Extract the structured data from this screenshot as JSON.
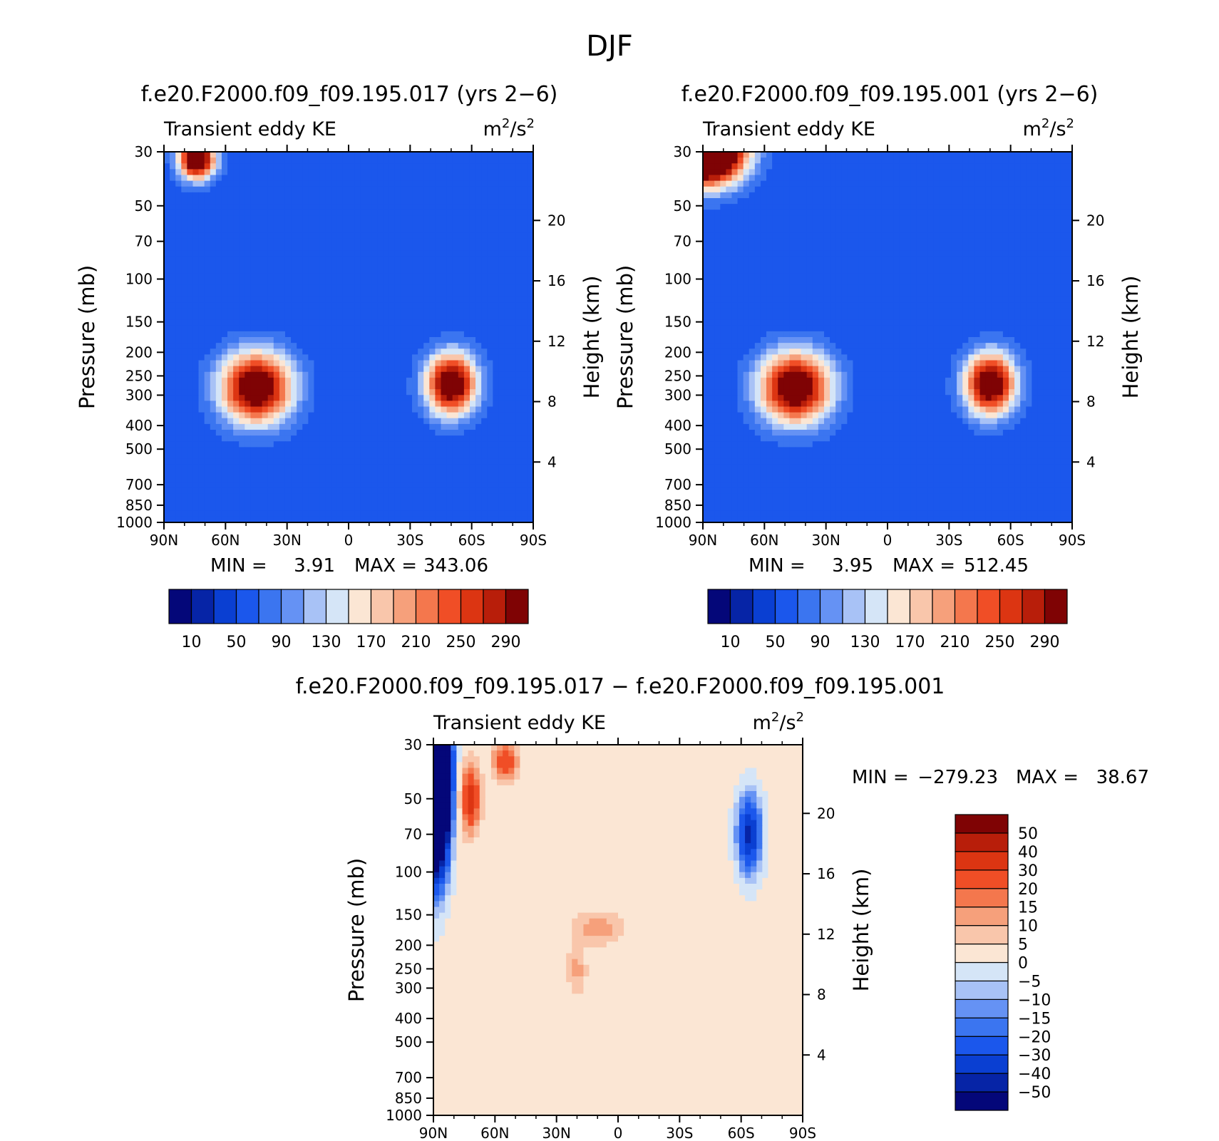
{
  "figure": {
    "title": "DJF"
  },
  "chart_data": [
    {
      "type": "heatmap",
      "title": "f.e20.F2000.f09_f09.195.017 (yrs 2−6)",
      "subtitle_left": "Transient eddy KE",
      "subtitle_right_base": "m",
      "subtitle_right_sup1": "2",
      "subtitle_right_mid": "/s",
      "subtitle_right_sup2": "2",
      "ylabel": "Pressure (mb)",
      "ylabel_right": "Height (km)",
      "x_ticks": [
        "90N",
        "60N",
        "30N",
        "0",
        "30S",
        "60S",
        "90S"
      ],
      "y_ticks": [
        "30",
        "50",
        "70",
        "100",
        "150",
        "200",
        "250",
        "300",
        "400",
        "500",
        "700",
        "850",
        "1000"
      ],
      "y_ticks_right": [
        "20",
        "16",
        "12",
        "8",
        "4"
      ],
      "stats": {
        "min_label": "MIN =",
        "min": "3.91",
        "max_label": "MAX =",
        "max": "343.06"
      },
      "blobs": [
        {
          "lat": 74,
          "p": 32,
          "amp": 330,
          "wlat": 6,
          "wlogp": 0.13
        },
        {
          "lat": 45,
          "p": 280,
          "amp": 300,
          "wlat": 12,
          "wlogp": 0.23
        },
        {
          "lat": -50,
          "p": 270,
          "amp": 300,
          "wlat": 8.5,
          "wlogp": 0.2
        }
      ],
      "base": 55
    },
    {
      "type": "heatmap",
      "title": "f.e20.F2000.f09_f09.195.001 (yrs 2−6)",
      "subtitle_left": "Transient eddy KE",
      "subtitle_right_base": "m",
      "subtitle_right_sup1": "2",
      "subtitle_right_mid": "/s",
      "subtitle_right_sup2": "2",
      "ylabel": "Pressure (mb)",
      "ylabel_right": "Height (km)",
      "x_ticks": [
        "90N",
        "60N",
        "30N",
        "0",
        "30S",
        "60S",
        "90S"
      ],
      "y_ticks": [
        "30",
        "50",
        "70",
        "100",
        "150",
        "200",
        "250",
        "300",
        "400",
        "500",
        "700",
        "850",
        "1000"
      ],
      "y_ticks_right": [
        "20",
        "16",
        "12",
        "8",
        "4"
      ],
      "stats": {
        "min_label": "MIN =",
        "min": "3.95",
        "max_label": "MAX =",
        "max": "512.45"
      },
      "blobs": [
        {
          "lat": 88,
          "p": 30,
          "amp": 510,
          "wlat": 12,
          "wlogp": 0.2
        },
        {
          "lat": 45,
          "p": 280,
          "amp": 300,
          "wlat": 12,
          "wlogp": 0.23
        },
        {
          "lat": -50,
          "p": 270,
          "amp": 300,
          "wlat": 8.5,
          "wlogp": 0.2
        }
      ],
      "base": 55
    },
    {
      "type": "heatmap",
      "title": "f.e20.F2000.f09_f09.195.017 − f.e20.F2000.f09_f09.195.001",
      "subtitle_left": "Transient eddy KE",
      "subtitle_right_base": "m",
      "subtitle_right_sup1": "2",
      "subtitle_right_mid": "/s",
      "subtitle_right_sup2": "2",
      "ylabel": "Pressure (mb)",
      "ylabel_right": "Height (km)",
      "x_ticks": [
        "90N",
        "60N",
        "30N",
        "0",
        "30S",
        "60S",
        "90S"
      ],
      "y_ticks": [
        "30",
        "50",
        "70",
        "100",
        "150",
        "200",
        "250",
        "300",
        "400",
        "500",
        "700",
        "850",
        "1000"
      ],
      "y_ticks_right": [
        "20",
        "16",
        "12",
        "8",
        "4"
      ],
      "stats": {
        "min_label": "MIN =",
        "min": "−279.23",
        "max_label": "MAX =",
        "max": "38.67"
      },
      "blobs": [
        {
          "lat": 89,
          "p": 40,
          "amp": -280,
          "wlat": 4,
          "wlogp": 0.5
        },
        {
          "lat": 72,
          "p": 50,
          "amp": 35,
          "wlat": 3,
          "wlogp": 0.2
        },
        {
          "lat": 55,
          "p": 35,
          "amp": 25,
          "wlat": 4,
          "wlogp": 0.12
        },
        {
          "lat": 10,
          "p": 170,
          "amp": 12,
          "wlat": 8,
          "wlogp": 0.1
        },
        {
          "lat": -64,
          "p": 70,
          "amp": -45,
          "wlat": 4,
          "wlogp": 0.25
        },
        {
          "lat": 20,
          "p": 250,
          "amp": 10,
          "wlat": 3,
          "wlogp": 0.15
        }
      ],
      "base": 2
    }
  ],
  "colorbars": {
    "top": {
      "colors": [
        "#040779",
        "#0624a6",
        "#0a3fd2",
        "#1b57ec",
        "#3b75f0",
        "#6592f4",
        "#a8c2f6",
        "#d5e5f7",
        "#fbe6d4",
        "#f9c6ab",
        "#f6a07b",
        "#f4774d",
        "#f04e26",
        "#dc3512",
        "#b81e0a",
        "#7f0304"
      ],
      "labels": [
        "10",
        "50",
        "90",
        "130",
        "170",
        "210",
        "250",
        "290"
      ],
      "levels": [
        10,
        30,
        50,
        70,
        90,
        110,
        130,
        150,
        170,
        190,
        210,
        230,
        250,
        270,
        290
      ]
    },
    "diff": {
      "colors": [
        "#040779",
        "#0624a6",
        "#0a3fd2",
        "#1b57ec",
        "#3b75f0",
        "#6592f4",
        "#a8c2f6",
        "#d5e5f7",
        "#fbe6d4",
        "#f9c6ab",
        "#f6a07b",
        "#f4774d",
        "#f04e26",
        "#dc3512",
        "#b81e0a",
        "#7f0304"
      ],
      "labels": [
        "50",
        "40",
        "30",
        "20",
        "15",
        "10",
        "5",
        "0",
        "−5",
        "−10",
        "−15",
        "−20",
        "−30",
        "−40",
        "−50"
      ],
      "levels": [
        -50,
        -40,
        -30,
        -20,
        -15,
        -10,
        -5,
        0,
        5,
        10,
        15,
        20,
        30,
        40,
        50
      ]
    }
  }
}
